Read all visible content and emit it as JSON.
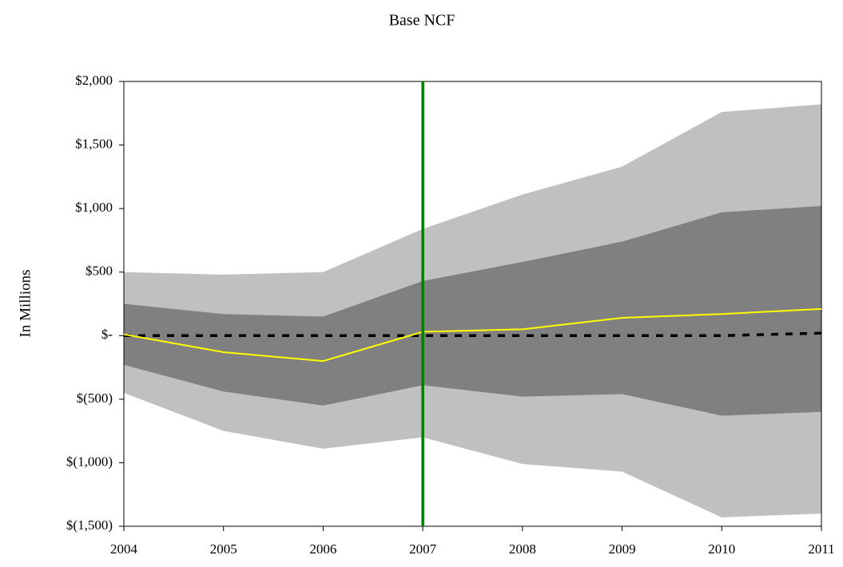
{
  "chart_data": {
    "type": "fan",
    "title": "Base NCF",
    "y_label": "In Millions",
    "x": [
      2004,
      2005,
      2006,
      2007,
      2008,
      2009,
      2010,
      2011
    ],
    "xlim": [
      2004,
      2011
    ],
    "xticks": [
      2004,
      2005,
      2006,
      2007,
      2008,
      2009,
      2010,
      2011
    ],
    "ylim": [
      -1500,
      2000
    ],
    "yticks": [
      {
        "value": -1500,
        "label": "$(1,500)"
      },
      {
        "value": -1000,
        "label": "$(1,000)"
      },
      {
        "value": -500,
        "label": "$(500)"
      },
      {
        "value": 0,
        "label": "$-"
      },
      {
        "value": 500,
        "label": "$500"
      },
      {
        "value": 1000,
        "label": "$1,000"
      },
      {
        "value": 1500,
        "label": "$1,500"
      },
      {
        "value": 2000,
        "label": "$2,000"
      }
    ],
    "bands": [
      {
        "color": "#c0c0c0",
        "upper": [
          500,
          480,
          500,
          840,
          1110,
          1330,
          1760,
          1820
        ],
        "lower": [
          -450,
          -750,
          -890,
          -800,
          -1010,
          -1070,
          -1430,
          -1400
        ]
      },
      {
        "color": "#808080",
        "upper": [
          250,
          170,
          150,
          430,
          580,
          740,
          970,
          1020
        ],
        "lower": [
          -230,
          -440,
          -550,
          -390,
          -480,
          -460,
          -630,
          -600
        ]
      }
    ],
    "lines": [
      {
        "color": "#000000",
        "dashed": true,
        "values": [
          0,
          0,
          0,
          0,
          0,
          0,
          0,
          20
        ]
      },
      {
        "color": "#ffff00",
        "dashed": false,
        "values": [
          10,
          -130,
          -200,
          30,
          50,
          140,
          170,
          210
        ]
      }
    ],
    "vline": {
      "x": 2007,
      "color": "#008000"
    }
  }
}
